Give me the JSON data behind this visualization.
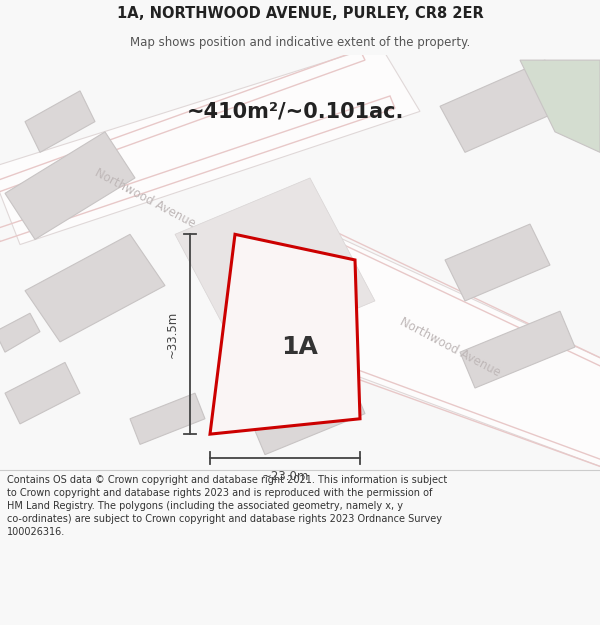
{
  "title_line1": "1A, NORTHWOOD AVENUE, PURLEY, CR8 2ER",
  "title_line2": "Map shows position and indicative extent of the property.",
  "area_text": "~410m²/~0.101ac.",
  "label_1a": "1A",
  "dim_height": "~33.5m",
  "dim_width": "~23.0m",
  "footer_line1": "Contains OS data © Crown copyright and database right 2021. This information is subject",
  "footer_line2": "to Crown copyright and database rights 2023 and is reproduced with the permission of",
  "footer_line3": "HM Land Registry. The polygons (including the associated geometry, namely x, y",
  "footer_line4": "co-ordinates) are subject to Crown copyright and database rights 2023 Ordnance Survey",
  "footer_line5": "100026316.",
  "bg_color": "#f8f8f8",
  "map_bg": "#f2efef",
  "road_fill": "#fdfcfc",
  "road_edge": "#e0d8d8",
  "road_inner": "#e8e0e0",
  "building_fill": "#dbd7d7",
  "building_edge": "#c8c4c4",
  "green_fill": "#d4ddd0",
  "green_edge": "#c8c4c4",
  "highlight_fill": "#faf5f5",
  "highlight_edge": "#cc0000",
  "road_label_color": "#bfb8b8",
  "dim_color": "#444444",
  "footer_bg": "#ffffff",
  "footer_color": "#333333",
  "pink_road": "#e8c8c8",
  "title_color": "#222222",
  "subtitle_color": "#555555"
}
